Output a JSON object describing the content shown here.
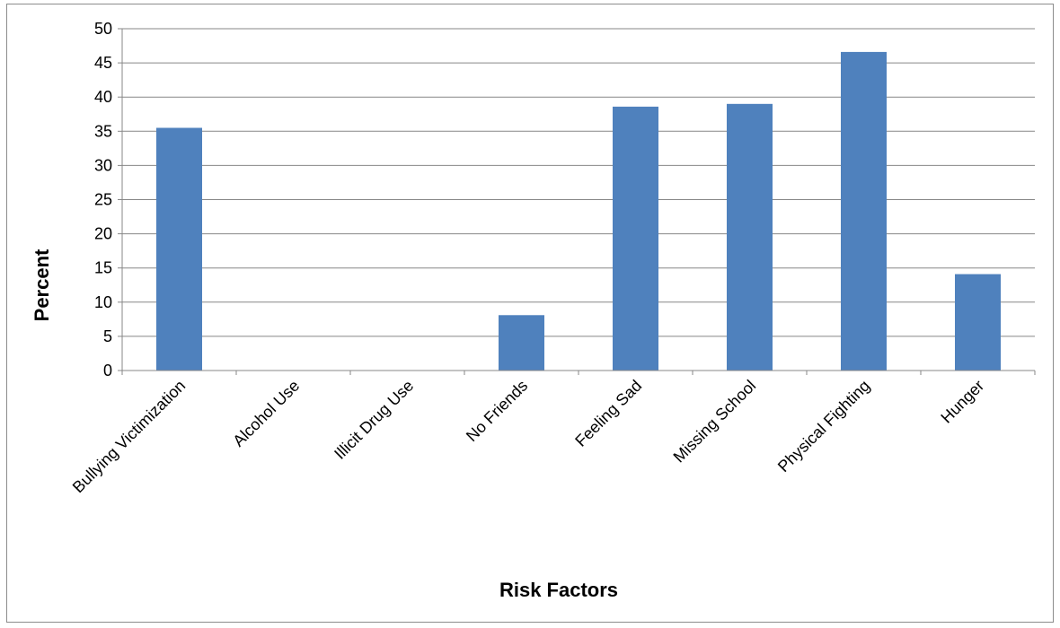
{
  "chart_data": {
    "type": "bar",
    "title": "",
    "xlabel": "Risk Factors",
    "ylabel": "Percent",
    "categories": [
      "Bullying Victimization",
      "Alcohol Use",
      "Illicit Drug Use",
      "No Friends",
      "Feeling Sad",
      "Missing School",
      "Physical Fighting",
      "Hunger"
    ],
    "values": [
      35.5,
      0,
      0,
      8.1,
      38.6,
      39.0,
      46.6,
      14.1
    ],
    "ylim": [
      0,
      50
    ],
    "yticks": [
      0,
      5,
      10,
      15,
      20,
      25,
      30,
      35,
      40,
      45,
      50
    ],
    "grid": true,
    "legend": "none",
    "bar_color": "#4f81bd",
    "grid_color": "#878787"
  }
}
